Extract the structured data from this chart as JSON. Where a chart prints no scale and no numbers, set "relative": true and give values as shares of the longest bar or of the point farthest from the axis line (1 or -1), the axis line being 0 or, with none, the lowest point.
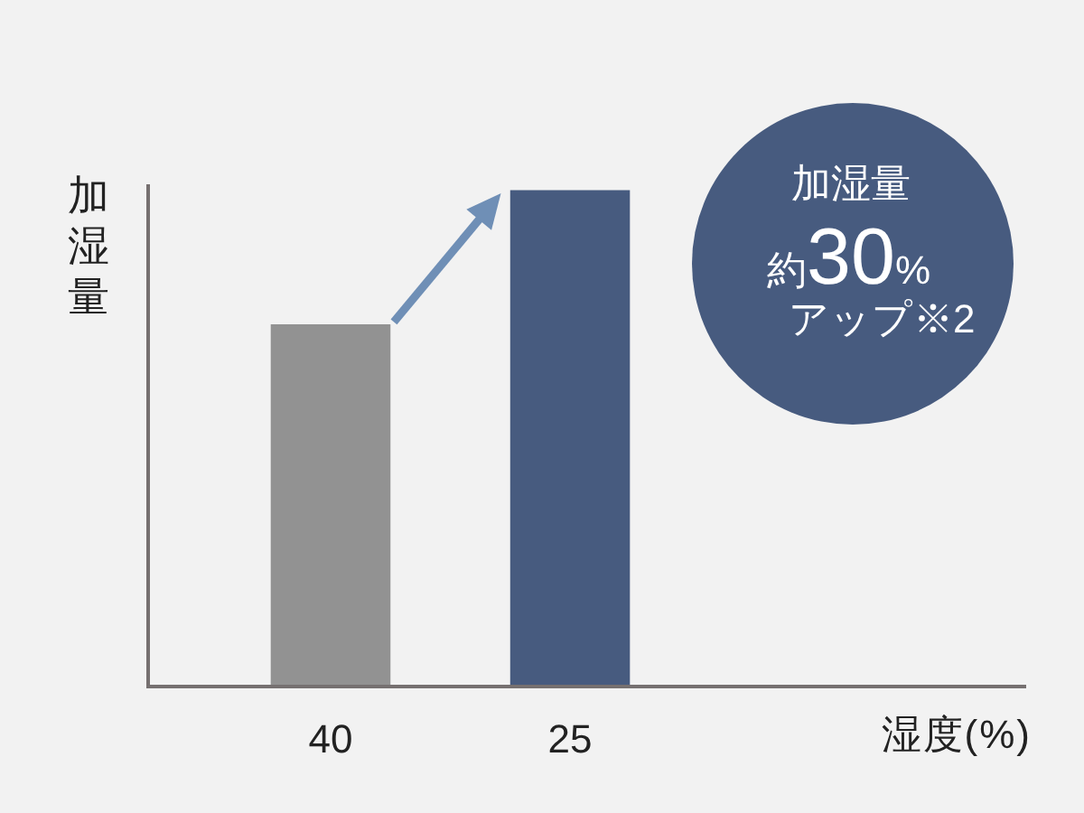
{
  "chart_data": {
    "type": "bar",
    "categories": [
      "40",
      "25"
    ],
    "values": [
      0.73,
      1
    ],
    "colors": [
      "#929292",
      "#475b7f"
    ],
    "relative": true,
    "xlabel": "湿度(%)",
    "ylabel": "加湿量",
    "annotations": [
      "加湿量",
      "約30%",
      "アップ※2"
    ]
  }
}
